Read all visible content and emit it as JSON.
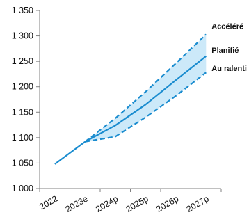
{
  "chart_data": {
    "type": "line",
    "title": "",
    "xlabel": "",
    "ylabel": "",
    "categories": [
      "2022",
      "2023e",
      "2024p",
      "2025p",
      "2026p",
      "2027p"
    ],
    "ylim": [
      1000,
      1350
    ],
    "yticks": [
      {
        "value": 1000,
        "label": "1 000"
      },
      {
        "value": 1050,
        "label": "1 050"
      },
      {
        "value": 1100,
        "label": "1 100"
      },
      {
        "value": 1150,
        "label": "1 150"
      },
      {
        "value": 1200,
        "label": "1 200"
      },
      {
        "value": 1250,
        "label": "1 250"
      },
      {
        "value": 1300,
        "label": "1 300"
      },
      {
        "value": 1350,
        "label": "1 350"
      }
    ],
    "grid": false,
    "series": [
      {
        "name": "Planifié",
        "style": "solid",
        "values": [
          1048,
          1092,
          1124,
          1165,
          1213,
          1260
        ]
      },
      {
        "name": "Accéléré",
        "style": "dashed",
        "values": [
          null,
          1092,
          1138,
          1190,
          1246,
          1303
        ]
      },
      {
        "name": "Au ralenti",
        "style": "dashed",
        "values": [
          null,
          1092,
          1102,
          1140,
          1182,
          1228
        ]
      }
    ],
    "band": {
      "between": [
        "Au ralenti",
        "Accéléré"
      ],
      "color": "#cce9f9"
    },
    "colors": {
      "line": "#1a8ccf",
      "band": "#cce9f9",
      "axis": "#808080",
      "text": "#111111"
    }
  }
}
